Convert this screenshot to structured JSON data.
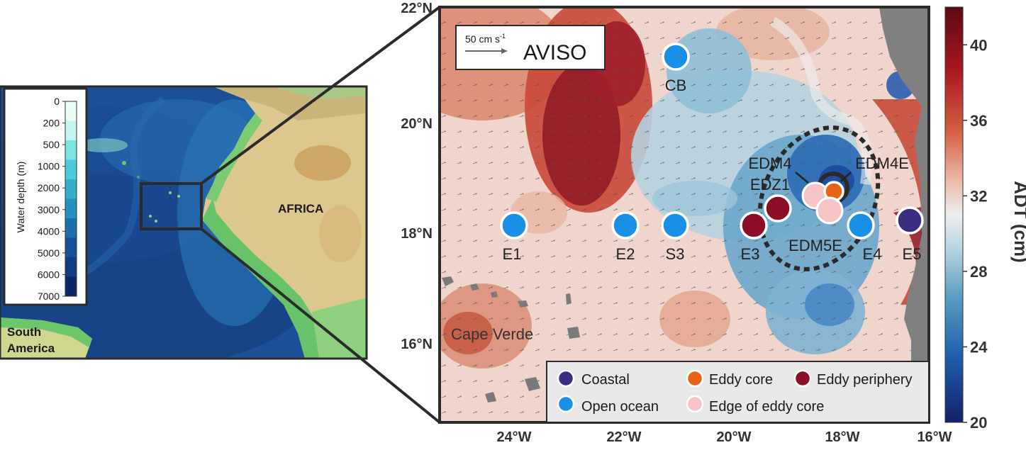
{
  "overview_map": {
    "region_labels": {
      "africa": "AFRICA",
      "south_america_line1": "South",
      "south_america_line2": "America"
    },
    "depth_legend": {
      "title": "Water depth (m)",
      "ticks": [
        "0",
        "200",
        "500",
        "1000",
        "2000",
        "3000",
        "4000",
        "5000",
        "6000",
        "7000"
      ],
      "colors": [
        "#e9fff5",
        "#c4f6ef",
        "#7fe3e0",
        "#4ccbd8",
        "#32aec8",
        "#2590bd",
        "#1b6fad",
        "#15509a",
        "#123c85",
        "#0c2565"
      ]
    }
  },
  "detail_map": {
    "velocity_scale": {
      "label_base": "50 cm s",
      "label_exp": "-1"
    },
    "product_label": "AVISO",
    "lat_labels": [
      "22°N",
      "20°N",
      "18°N",
      "16°N"
    ],
    "lon_labels": [
      "24°W",
      "22°W",
      "20°W",
      "18°W",
      "16°W"
    ],
    "place_labels": {
      "cape_verde": "Cape Verde"
    },
    "stations": [
      {
        "id": "CB",
        "label": "CB",
        "type": "open_ocean"
      },
      {
        "id": "E1",
        "label": "E1",
        "type": "open_ocean"
      },
      {
        "id": "E2",
        "label": "E2",
        "type": "open_ocean"
      },
      {
        "id": "S3",
        "label": "S3",
        "type": "open_ocean"
      },
      {
        "id": "E3",
        "label": "E3",
        "type": "eddy_periphery"
      },
      {
        "id": "E4",
        "label": "E4",
        "type": "open_ocean"
      },
      {
        "id": "E5",
        "label": "E5",
        "type": "coastal"
      },
      {
        "id": "EDM4",
        "label": "EDM4",
        "type": "edge_of_eddy_core"
      },
      {
        "id": "EDZ1",
        "label": "EDZ1",
        "type": "eddy_periphery"
      },
      {
        "id": "EDM4E",
        "label": "EDM4E",
        "type": "eddy_core"
      },
      {
        "id": "EDM5E",
        "label": "EDM5E",
        "type": "edge_of_eddy_core"
      }
    ],
    "legend": {
      "coastal": "Coastal",
      "eddy_core": "Eddy core",
      "eddy_periphery": "Eddy periphery",
      "open_ocean": "Open ocean",
      "edge_of_eddy_core": "Edge of eddy core"
    },
    "legend_colors": {
      "coastal": "#3b2d82",
      "eddy_core": "#e86414",
      "eddy_periphery": "#8c0d26",
      "open_ocean": "#1a8fe6",
      "edge_of_eddy_core": "#f6c3c6"
    }
  },
  "colorbar": {
    "title": "ADT (cm)",
    "ticks": [
      "40",
      "36",
      "32",
      "28",
      "24",
      "20"
    ],
    "range": [
      20,
      42
    ]
  }
}
